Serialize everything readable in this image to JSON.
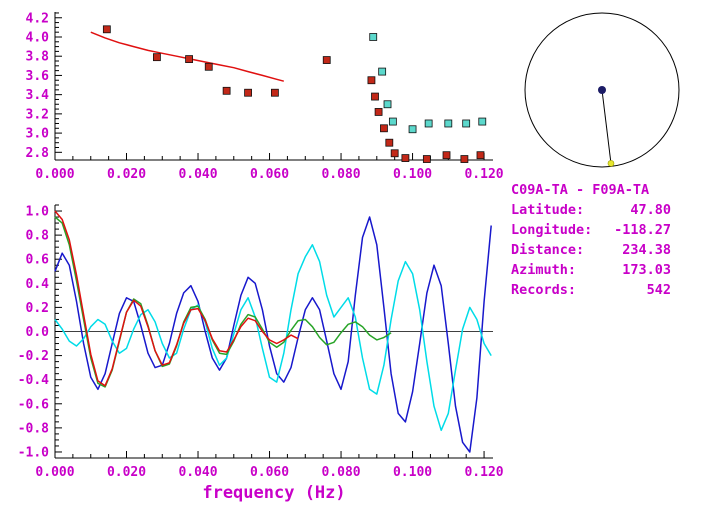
{
  "info_panel": {
    "title": "C09A-TA - F09A-TA",
    "rows": [
      {
        "label": "Latitude:",
        "value": "47.80"
      },
      {
        "label": "Longitude:",
        "value": "-118.27"
      },
      {
        "label": "Distance:",
        "value": "234.38"
      },
      {
        "label": "Azimuth:",
        "value": "173.03"
      },
      {
        "label": "Records:",
        "value": "542"
      }
    ]
  },
  "azimuth_dial": {
    "azimuth_deg": 173.03
  },
  "colors": {
    "magenta_text": "#c800c8",
    "axis": "#000000",
    "red_marker": "#c22818",
    "cyan_marker": "#5cd8cc",
    "red_line": "#e01010",
    "green_line": "#28a428",
    "blue_line": "#1818cc",
    "cyan_line": "#00dce8",
    "dial_center_dot": "#1c1c66",
    "dial_end_dot": "#e6e62e"
  },
  "chart_data": [
    {
      "type": "scatter",
      "title": "",
      "xlabel": "",
      "ylabel": "",
      "xlim": [
        0,
        0.1225
      ],
      "ylim": [
        2.72,
        4.26
      ],
      "grid": false,
      "xtick_vals": [
        0,
        0.02,
        0.04,
        0.06,
        0.08,
        0.1,
        0.12
      ],
      "xtick_labels": [
        "0.000",
        "0.020",
        "0.040",
        "0.060",
        "0.080",
        "0.100",
        "0.120"
      ],
      "ytick_vals": [
        2.8,
        3.0,
        3.2,
        3.4,
        3.6,
        3.8,
        4.0,
        4.2
      ],
      "ytick_labels": [
        "2.8",
        "3.0",
        "3.2",
        "3.4",
        "3.6",
        "3.8",
        "4.0",
        "4.2"
      ],
      "series": [
        {
          "name": "reference-dispersion-curve",
          "type": "line",
          "color_key": "red_line",
          "points": [
            [
              0.01,
              4.05
            ],
            [
              0.014,
              3.99
            ],
            [
              0.018,
              3.94
            ],
            [
              0.022,
              3.9
            ],
            [
              0.026,
              3.86
            ],
            [
              0.03,
              3.83
            ],
            [
              0.034,
              3.8
            ],
            [
              0.038,
              3.77
            ],
            [
              0.042,
              3.74
            ],
            [
              0.046,
              3.71
            ],
            [
              0.05,
              3.68
            ],
            [
              0.054,
              3.64
            ],
            [
              0.058,
              3.6
            ],
            [
              0.062,
              3.56
            ],
            [
              0.064,
              3.54
            ]
          ]
        },
        {
          "name": "dispersion-picks-cyan",
          "type": "scatter",
          "marker": "square",
          "color_key": "cyan_marker",
          "points": [
            [
              0.089,
              4.0
            ],
            [
              0.0915,
              3.64
            ],
            [
              0.093,
              3.3
            ],
            [
              0.0945,
              3.12
            ],
            [
              0.1,
              3.04
            ],
            [
              0.1045,
              3.1
            ],
            [
              0.11,
              3.1
            ],
            [
              0.115,
              3.1
            ],
            [
              0.1195,
              3.12
            ]
          ]
        },
        {
          "name": "dispersion-picks-red",
          "type": "scatter",
          "marker": "square",
          "color_key": "red_marker",
          "points": [
            [
              0.0145,
              4.08
            ],
            [
              0.0285,
              3.79
            ],
            [
              0.0375,
              3.77
            ],
            [
              0.043,
              3.69
            ],
            [
              0.048,
              3.44
            ],
            [
              0.054,
              3.42
            ],
            [
              0.0615,
              3.42
            ],
            [
              0.076,
              3.76
            ],
            [
              0.0885,
              3.55
            ],
            [
              0.0895,
              3.38
            ],
            [
              0.0905,
              3.22
            ],
            [
              0.092,
              3.05
            ],
            [
              0.0935,
              2.9
            ],
            [
              0.095,
              2.79
            ],
            [
              0.098,
              2.74
            ],
            [
              0.104,
              2.73
            ],
            [
              0.1095,
              2.77
            ],
            [
              0.1145,
              2.73
            ],
            [
              0.119,
              2.77
            ]
          ]
        }
      ]
    },
    {
      "type": "line",
      "title": "",
      "xlabel": "frequency (Hz)",
      "ylabel": "",
      "xlim": [
        0,
        0.1225
      ],
      "ylim": [
        -1.05,
        1.05
      ],
      "grid": false,
      "zero_line": true,
      "xtick_vals": [
        0,
        0.02,
        0.04,
        0.06,
        0.08,
        0.1,
        0.12
      ],
      "xtick_labels": [
        "0.000",
        "0.020",
        "0.040",
        "0.060",
        "0.080",
        "0.100",
        "0.120"
      ],
      "ytick_vals": [
        -1.0,
        -0.8,
        -0.6,
        -0.4,
        -0.2,
        0.0,
        0.2,
        0.4,
        0.6,
        0.8,
        1.0
      ],
      "ytick_labels": [
        "-1.0",
        "-0.8",
        "-0.6",
        "-0.4",
        "-0.2",
        "0.0",
        "0.2",
        "0.4",
        "0.6",
        "0.8",
        "1.0"
      ],
      "series": [
        {
          "name": "waveform-blue",
          "type": "line",
          "color_key": "blue_line",
          "x0": 0,
          "dx": 0.002,
          "y": [
            0.5,
            0.65,
            0.55,
            0.25,
            -0.1,
            -0.38,
            -0.48,
            -0.35,
            -0.1,
            0.15,
            0.28,
            0.25,
            0.05,
            -0.18,
            -0.3,
            -0.28,
            -0.1,
            0.15,
            0.32,
            0.38,
            0.25,
            0,
            -0.22,
            -0.32,
            -0.22,
            0.05,
            0.3,
            0.45,
            0.4,
            0.18,
            -0.12,
            -0.35,
            -0.42,
            -0.3,
            -0.05,
            0.18,
            0.28,
            0.18,
            -0.08,
            -0.35,
            -0.48,
            -0.25,
            0.3,
            0.78,
            0.95,
            0.72,
            0.2,
            -0.35,
            -0.68,
            -0.75,
            -0.5,
            -0.1,
            0.32,
            0.55,
            0.38,
            -0.1,
            -0.62,
            -0.92,
            -1,
            -0.55,
            0.25,
            0.88
          ]
        },
        {
          "name": "waveform-cyan",
          "type": "line",
          "color_key": "cyan_line",
          "x0": 0,
          "dx": 0.002,
          "y": [
            0.1,
            0.02,
            -0.08,
            -0.12,
            -0.06,
            0.04,
            0.1,
            0.06,
            -0.08,
            -0.18,
            -0.14,
            0.02,
            0.14,
            0.18,
            0.08,
            -0.1,
            -0.22,
            -0.18,
            0.02,
            0.18,
            0.22,
            0.08,
            -0.14,
            -0.28,
            -0.22,
            -0.02,
            0.18,
            0.28,
            0.12,
            -0.14,
            -0.38,
            -0.42,
            -0.18,
            0.18,
            0.48,
            0.62,
            0.72,
            0.58,
            0.3,
            0.12,
            0.2,
            0.28,
            0.12,
            -0.22,
            -0.48,
            -0.52,
            -0.28,
            0.1,
            0.42,
            0.58,
            0.48,
            0.18,
            -0.25,
            -0.62,
            -0.82,
            -0.68,
            -0.32,
            0.02,
            0.2,
            0.1,
            -0.1,
            -0.2
          ]
        },
        {
          "name": "waveform-green",
          "type": "line",
          "color_key": "green_line",
          "x0": 0,
          "dx": 0.002,
          "y": [
            0.95,
            0.9,
            0.72,
            0.42,
            0.1,
            -0.22,
            -0.43,
            -0.46,
            -0.32,
            -0.08,
            0.16,
            0.27,
            0.23,
            0.05,
            -0.16,
            -0.29,
            -0.27,
            -0.12,
            0.08,
            0.2,
            0.21,
            0.1,
            -0.07,
            -0.18,
            -0.19,
            -0.08,
            0.06,
            0.14,
            0.12,
            0.02,
            -0.09,
            -0.13,
            -0.09,
            0.01,
            0.09,
            0.1,
            0.04,
            -0.05,
            -0.11,
            -0.09,
            -0.01,
            0.06,
            0.08,
            0.04,
            -0.03,
            -0.07,
            -0.05,
            -0.01
          ]
        },
        {
          "name": "waveform-red",
          "type": "line",
          "color_key": "red_line",
          "x0": 0,
          "dx": 0.002,
          "y": [
            1,
            0.93,
            0.76,
            0.47,
            0.14,
            -0.19,
            -0.41,
            -0.45,
            -0.31,
            -0.07,
            0.16,
            0.26,
            0.21,
            0.04,
            -0.16,
            -0.28,
            -0.26,
            -0.11,
            0.07,
            0.18,
            0.19,
            0.09,
            -0.06,
            -0.16,
            -0.17,
            -0.07,
            0.04,
            0.11,
            0.09,
            0,
            -0.07,
            -0.1,
            -0.07,
            -0.03,
            -0.06
          ]
        }
      ]
    }
  ]
}
